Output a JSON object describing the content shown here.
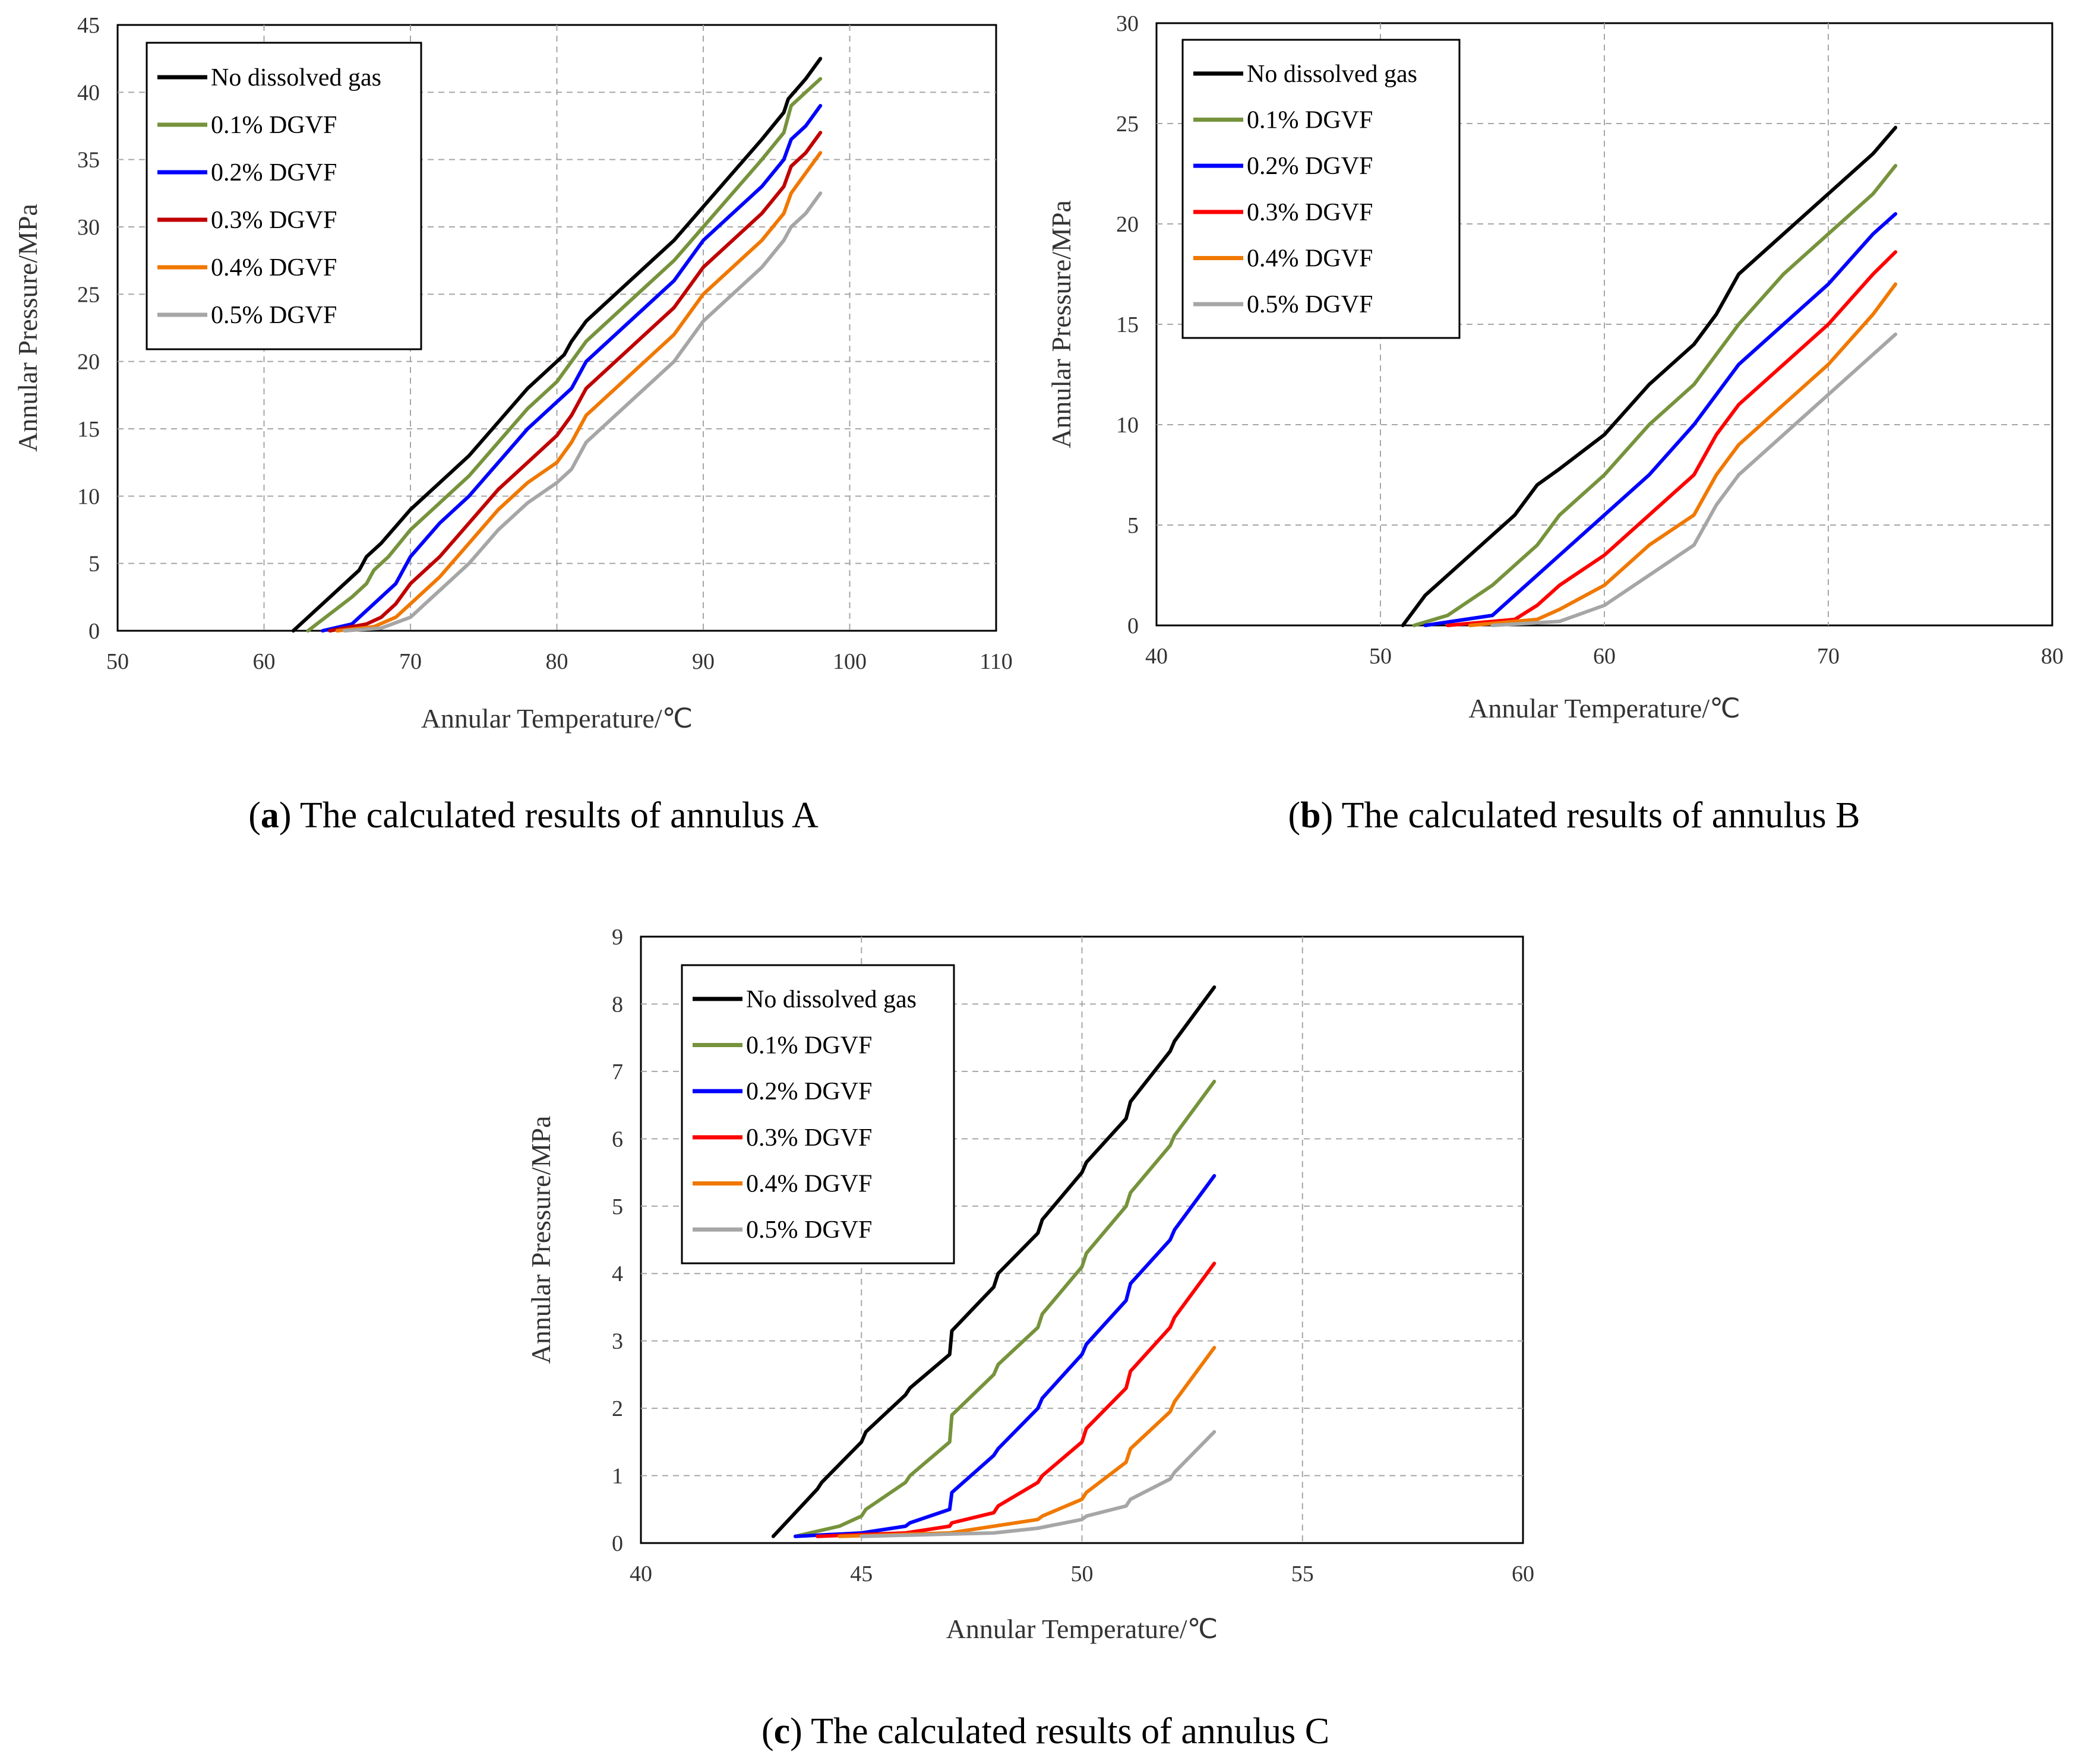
{
  "chart_data": [
    {
      "type": "line",
      "id": "a",
      "caption_letter": "a",
      "caption_text": "The calculated results of annulus A",
      "xlabel": "Annular Temperature/℃",
      "ylabel": "Annular Pressure/MPa",
      "xlim": [
        50,
        110
      ],
      "ylim": [
        0,
        45
      ],
      "xticks": [
        50,
        60,
        70,
        80,
        90,
        100,
        110
      ],
      "yticks": [
        0,
        5,
        10,
        15,
        20,
        25,
        30,
        35,
        40,
        45
      ],
      "grid": true,
      "legend_position": "top-left",
      "series": [
        {
          "name": "No dissolved gas",
          "color": "#000000",
          "x": [
            62,
            65,
            66.5,
            67,
            68,
            70,
            72,
            74,
            76,
            78,
            79,
            80.5,
            81,
            82,
            84,
            86,
            88,
            90,
            92,
            94,
            95.5,
            95.8,
            97,
            98
          ],
          "y": [
            0,
            3,
            4.5,
            5.5,
            6.5,
            9,
            11,
            13,
            15.5,
            18,
            19,
            20.5,
            21.5,
            23,
            25,
            27,
            29,
            31.5,
            34,
            36.5,
            38.5,
            39.5,
            41,
            42.5
          ]
        },
        {
          "name": "0.1% DGVF",
          "color": "#76933c",
          "x": [
            63,
            66,
            67,
            67.5,
            68.5,
            70,
            72,
            74,
            76,
            78,
            80,
            81,
            82,
            84,
            86,
            88,
            90,
            92,
            94,
            95.5,
            96,
            97,
            98
          ],
          "y": [
            0,
            2.5,
            3.5,
            4.5,
            5.5,
            7.5,
            9.5,
            11.5,
            14,
            16.5,
            18.5,
            20,
            21.5,
            23.5,
            25.5,
            27.5,
            30,
            32.5,
            35,
            37,
            39,
            40,
            41
          ]
        },
        {
          "name": "0.2% DGVF",
          "color": "#0000ff",
          "x": [
            64,
            66,
            67.5,
            68,
            69,
            70,
            72,
            74,
            76,
            78,
            80,
            81,
            82,
            84,
            86,
            88,
            90,
            92,
            94,
            95.5,
            96,
            97,
            98
          ],
          "y": [
            0,
            0.5,
            2,
            2.5,
            3.5,
            5.5,
            8,
            10,
            12.5,
            15,
            17,
            18,
            20,
            22,
            24,
            26,
            29,
            31,
            33,
            35,
            36.5,
            37.5,
            39
          ]
        },
        {
          "name": "0.3% DGVF",
          "color": "#c00000",
          "x": [
            64.5,
            67,
            68,
            69,
            70,
            72,
            74,
            76,
            78,
            80,
            81,
            82,
            84,
            86,
            88,
            90,
            92,
            94,
            95.5,
            96,
            97,
            98
          ],
          "y": [
            0,
            0.5,
            1,
            2,
            3.5,
            5.5,
            8,
            10.5,
            12.5,
            14.5,
            16,
            18,
            20,
            22,
            24,
            27,
            29,
            31,
            33,
            34.5,
            35.5,
            37
          ]
        },
        {
          "name": "0.4% DGVF",
          "color": "#f07800",
          "x": [
            65,
            67.5,
            69,
            70,
            72,
            74,
            76,
            78,
            80,
            81,
            82,
            84,
            86,
            88,
            90,
            92,
            94,
            95.5,
            96,
            97,
            98
          ],
          "y": [
            0,
            0.3,
            1,
            2,
            4,
            6.5,
            9,
            11,
            12.5,
            14,
            16,
            18,
            20,
            22,
            25,
            27,
            29,
            31,
            32.5,
            34,
            35.5
          ]
        },
        {
          "name": "0.5% DGVF",
          "color": "#a6a6a6",
          "x": [
            65.5,
            68,
            70,
            72,
            74,
            76,
            78,
            80,
            81,
            82,
            84,
            86,
            88,
            90,
            92,
            94,
            95.5,
            96,
            97,
            98
          ],
          "y": [
            0,
            0.2,
            1,
            3,
            5,
            7.5,
            9.5,
            11,
            12,
            14,
            16,
            18,
            20,
            23,
            25,
            27,
            29,
            30,
            31,
            32.5
          ]
        }
      ]
    },
    {
      "type": "line",
      "id": "b",
      "caption_letter": "b",
      "caption_text": "The calculated results of annulus B",
      "xlabel": "Annular Temperature/℃",
      "ylabel": "Annular Pressure/MPa",
      "xlim": [
        40,
        80
      ],
      "ylim": [
        0,
        30
      ],
      "xticks": [
        40,
        50,
        60,
        70,
        80
      ],
      "yticks": [
        0,
        5,
        10,
        15,
        20,
        25,
        30
      ],
      "grid": true,
      "legend_position": "top-left",
      "series": [
        {
          "name": "No dissolved gas",
          "color": "#000000",
          "x": [
            51,
            52,
            54,
            56,
            57,
            58,
            60,
            62,
            64,
            65,
            66,
            68,
            70,
            72,
            73
          ],
          "y": [
            0,
            1.5,
            3.5,
            5.5,
            7,
            7.8,
            9.5,
            12,
            14,
            15.5,
            17.5,
            19.5,
            21.5,
            23.5,
            24.8
          ]
        },
        {
          "name": "0.1% DGVF",
          "color": "#76933c",
          "x": [
            51.5,
            53,
            55,
            57,
            58,
            60,
            62,
            64,
            65,
            66,
            68,
            70,
            72,
            73
          ],
          "y": [
            0,
            0.5,
            2,
            4,
            5.5,
            7.5,
            10,
            12,
            13.5,
            15,
            17.5,
            19.5,
            21.5,
            22.9
          ]
        },
        {
          "name": "0.2% DGVF",
          "color": "#0000ff",
          "x": [
            52,
            55,
            57,
            58,
            60,
            62,
            64,
            65,
            66,
            68,
            70,
            72,
            73
          ],
          "y": [
            0,
            0.5,
            2.5,
            3.5,
            5.5,
            7.5,
            10,
            11.5,
            13,
            15,
            17,
            19.5,
            20.5
          ]
        },
        {
          "name": "0.3% DGVF",
          "color": "#ff0000",
          "x": [
            53,
            56,
            57,
            58,
            60,
            62,
            64,
            65,
            66,
            68,
            70,
            72,
            73
          ],
          "y": [
            0,
            0.3,
            1,
            2,
            3.5,
            5.5,
            7.5,
            9.5,
            11,
            13,
            15,
            17.5,
            18.6
          ]
        },
        {
          "name": "0.4% DGVF",
          "color": "#f07800",
          "x": [
            54,
            57,
            58,
            60,
            62,
            64,
            65,
            66,
            68,
            70,
            72,
            73
          ],
          "y": [
            0,
            0.3,
            0.8,
            2,
            4,
            5.5,
            7.5,
            9,
            11,
            13,
            15.5,
            17
          ]
        },
        {
          "name": "0.5% DGVF",
          "color": "#a6a6a6",
          "x": [
            55,
            58,
            60,
            62,
            64,
            65,
            66,
            68,
            70,
            72,
            73
          ],
          "y": [
            0,
            0.2,
            1,
            2.5,
            4,
            6,
            7.5,
            9.5,
            11.5,
            13.5,
            14.5
          ]
        }
      ]
    },
    {
      "type": "line",
      "id": "c",
      "caption_letter": "c",
      "caption_text": "The calculated results of annulus C",
      "xlabel": "Annular Temperature/℃",
      "ylabel": "Annular Pressure/MPa",
      "xlim": [
        40,
        60
      ],
      "ylim": [
        0,
        9
      ],
      "xticks": [
        40,
        45,
        50,
        55,
        60
      ],
      "yticks": [
        0,
        1,
        2,
        3,
        4,
        5,
        6,
        7,
        8,
        9
      ],
      "grid": true,
      "legend_position": "top-left",
      "series": [
        {
          "name": "No dissolved gas",
          "color": "#000000",
          "x": [
            43,
            44,
            44.1,
            45,
            45.1,
            46,
            46.1,
            47,
            47.05,
            48,
            48.1,
            49,
            49.1,
            50,
            50.1,
            51,
            51.1,
            52,
            52.1,
            53
          ],
          "y": [
            0.1,
            0.8,
            0.9,
            1.5,
            1.65,
            2.2,
            2.3,
            2.8,
            3.15,
            3.8,
            4.0,
            4.6,
            4.8,
            5.5,
            5.65,
            6.3,
            6.55,
            7.3,
            7.45,
            8.25
          ]
        },
        {
          "name": "0.1% DGVF",
          "color": "#76933c",
          "x": [
            43.5,
            44.5,
            45,
            45.1,
            46,
            46.1,
            47,
            47.05,
            48,
            48.1,
            49,
            49.1,
            50,
            50.1,
            51,
            51.1,
            52,
            52.1,
            53
          ],
          "y": [
            0.1,
            0.25,
            0.4,
            0.5,
            0.9,
            1.0,
            1.5,
            1.9,
            2.5,
            2.65,
            3.2,
            3.4,
            4.1,
            4.3,
            5.0,
            5.2,
            5.9,
            6.05,
            6.85
          ]
        },
        {
          "name": "0.2% DGVF",
          "color": "#0000ff",
          "x": [
            43.5,
            45,
            46,
            46.1,
            47,
            47.05,
            48,
            48.1,
            49,
            49.1,
            50,
            50.1,
            51,
            51.1,
            52,
            52.1,
            53
          ],
          "y": [
            0.1,
            0.15,
            0.25,
            0.3,
            0.5,
            0.75,
            1.3,
            1.4,
            2.0,
            2.15,
            2.8,
            2.95,
            3.6,
            3.85,
            4.5,
            4.65,
            5.45
          ]
        },
        {
          "name": "0.3% DGVF",
          "color": "#ff0000",
          "x": [
            44,
            46,
            47,
            47.05,
            48,
            48.1,
            49,
            49.1,
            50,
            50.1,
            51,
            51.1,
            52,
            52.1,
            53
          ],
          "y": [
            0.1,
            0.15,
            0.25,
            0.3,
            0.45,
            0.55,
            0.9,
            1.0,
            1.5,
            1.7,
            2.3,
            2.55,
            3.2,
            3.35,
            4.15
          ]
        },
        {
          "name": "0.4% DGVF",
          "color": "#f07800",
          "x": [
            44.5,
            47,
            48,
            49,
            49.1,
            50,
            50.1,
            51,
            51.1,
            52,
            52.1,
            53
          ],
          "y": [
            0.1,
            0.15,
            0.25,
            0.35,
            0.4,
            0.65,
            0.75,
            1.2,
            1.4,
            1.95,
            2.1,
            2.9
          ]
        },
        {
          "name": "0.5% DGVF",
          "color": "#a6a6a6",
          "x": [
            45,
            48,
            49,
            50,
            50.1,
            51,
            51.1,
            52,
            52.1,
            53
          ],
          "y": [
            0.1,
            0.15,
            0.22,
            0.35,
            0.4,
            0.55,
            0.65,
            0.95,
            1.05,
            1.65
          ]
        }
      ]
    }
  ]
}
